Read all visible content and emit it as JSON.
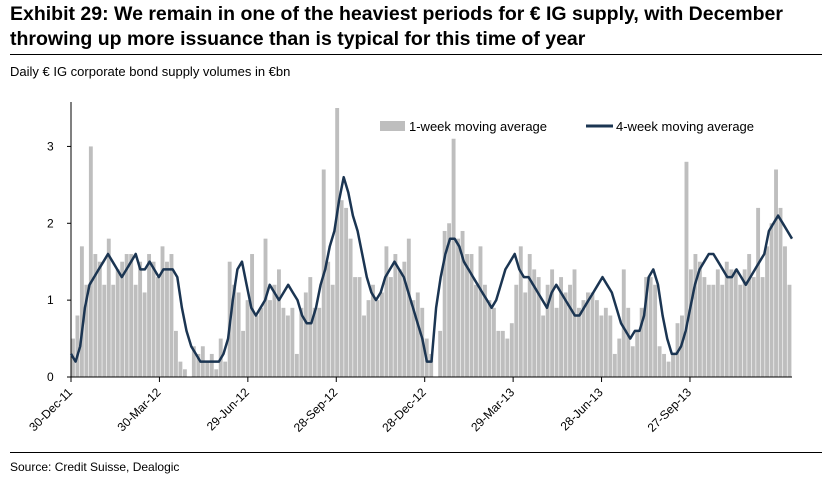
{
  "title": "Exhibit 29: We remain in one of the heaviest periods for € IG supply, with December throwing up more issuance than is typical for this time of year",
  "subtitle": "Daily € IG corporate bond supply volumes in €bn",
  "source": "Source: Credit Suisse, Dealogic",
  "colors": {
    "bar": "#bebebe",
    "line": "#1b3552"
  },
  "chart_data": {
    "type": "bar",
    "title": "",
    "xlabel": "",
    "ylabel": "",
    "ylim": [
      0,
      3.5
    ],
    "yticks": [
      0,
      1,
      2,
      3
    ],
    "x_range": [
      "2011-12-30",
      "2014-01-10"
    ],
    "xticks": [
      "30-Dec-11",
      "30-Mar-12",
      "29-Jun-12",
      "28-Sep-12",
      "28-Dec-12",
      "29-Mar-13",
      "28-Jun-13",
      "27-Sep-13"
    ],
    "legend_position": "top-right",
    "grid": false,
    "series": [
      {
        "name": "1-week moving average",
        "type": "bar",
        "frequency": "daily (business days, weekly sampling shown)",
        "values": [
          0.5,
          0.8,
          1.7,
          1.2,
          3.0,
          1.6,
          1.5,
          1.2,
          1.8,
          1.2,
          1.4,
          1.5,
          1.6,
          1.6,
          1.2,
          1.5,
          1.1,
          1.6,
          1.5,
          1.3,
          1.7,
          1.5,
          1.6,
          0.6,
          0.2,
          0.1,
          0.0,
          0.4,
          0.3,
          0.4,
          0.2,
          0.3,
          0.1,
          0.5,
          0.2,
          1.5,
          1.2,
          1.1,
          0.6,
          1.0,
          1.6,
          0.8,
          0.9,
          1.8,
          1.0,
          1.2,
          1.4,
          0.9,
          0.8,
          0.9,
          0.3,
          0.9,
          1.1,
          1.3,
          0.9,
          0.9,
          2.7,
          1.5,
          1.2,
          3.5,
          2.3,
          2.2,
          1.8,
          1.3,
          1.3,
          0.8,
          1.0,
          1.2,
          1.0,
          1.1,
          1.7,
          1.3,
          1.6,
          1.4,
          1.5,
          1.8,
          1.0,
          1.1,
          0.9,
          0.5,
          0.3,
          0.0,
          0.6,
          1.9,
          2.0,
          3.1,
          1.8,
          1.9,
          1.6,
          1.6,
          1.2,
          1.7,
          1.2,
          1.0,
          0.9,
          0.6,
          0.6,
          0.5,
          0.7,
          1.2,
          1.7,
          1.1,
          1.6,
          1.4,
          1.3,
          0.8,
          1.2,
          1.4,
          0.9,
          1.3,
          1.1,
          1.2,
          1.4,
          0.9,
          1.0,
          1.1,
          1.1,
          1.0,
          0.8,
          0.9,
          0.8,
          0.3,
          0.5,
          1.4,
          0.9,
          0.4,
          0.6,
          0.9,
          1.3,
          1.3,
          1.2,
          0.4,
          0.3,
          0.2,
          0.3,
          0.7,
          0.8,
          2.8,
          1.4,
          1.6,
          1.5,
          1.3,
          1.2,
          1.2,
          1.4,
          1.2,
          1.5,
          1.4,
          1.4,
          1.2,
          1.4,
          1.6,
          1.3,
          2.2,
          1.3,
          1.7,
          2.0,
          2.7,
          2.2,
          1.7,
          1.2
        ]
      },
      {
        "name": "4-week moving average",
        "type": "line",
        "frequency": "weekly",
        "values": [
          0.3,
          0.2,
          0.4,
          0.9,
          1.2,
          1.3,
          1.4,
          1.5,
          1.6,
          1.5,
          1.4,
          1.3,
          1.4,
          1.5,
          1.6,
          1.4,
          1.4,
          1.5,
          1.4,
          1.3,
          1.4,
          1.4,
          1.4,
          1.3,
          0.9,
          0.6,
          0.4,
          0.3,
          0.2,
          0.2,
          0.2,
          0.2,
          0.2,
          0.3,
          0.5,
          1.0,
          1.4,
          1.5,
          1.2,
          0.9,
          0.8,
          0.9,
          1.0,
          1.2,
          1.1,
          1.0,
          1.1,
          1.2,
          1.1,
          1.0,
          0.8,
          0.7,
          0.7,
          0.9,
          1.2,
          1.4,
          1.7,
          1.9,
          2.3,
          2.6,
          2.4,
          2.1,
          1.9,
          1.6,
          1.3,
          1.1,
          1.0,
          1.1,
          1.3,
          1.4,
          1.5,
          1.4,
          1.3,
          1.1,
          0.9,
          0.7,
          0.5,
          0.2,
          0.2,
          0.9,
          1.3,
          1.6,
          1.8,
          1.8,
          1.7,
          1.5,
          1.4,
          1.3,
          1.2,
          1.1,
          1.0,
          0.9,
          1.0,
          1.2,
          1.4,
          1.5,
          1.6,
          1.4,
          1.3,
          1.3,
          1.2,
          1.1,
          1.0,
          0.9,
          1.1,
          1.2,
          1.1,
          1.0,
          0.9,
          0.8,
          0.8,
          0.9,
          1.0,
          1.1,
          1.2,
          1.3,
          1.2,
          1.1,
          0.9,
          0.7,
          0.6,
          0.5,
          0.6,
          0.6,
          0.8,
          1.3,
          1.4,
          1.2,
          0.8,
          0.5,
          0.3,
          0.3,
          0.4,
          0.6,
          0.9,
          1.2,
          1.4,
          1.5,
          1.6,
          1.6,
          1.5,
          1.4,
          1.3,
          1.3,
          1.4,
          1.3,
          1.2,
          1.3,
          1.4,
          1.5,
          1.6,
          1.9,
          2.0,
          2.1,
          2.0,
          1.9,
          1.8
        ]
      }
    ]
  }
}
